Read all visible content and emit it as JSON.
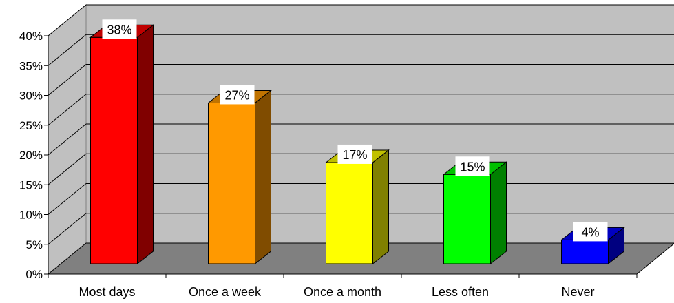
{
  "chart_data": {
    "type": "bar",
    "title": "",
    "xlabel": "",
    "ylabel": "",
    "categories": [
      "Most days",
      "Once a week",
      "Once a month",
      "Less often",
      "Never"
    ],
    "values": [
      38,
      27,
      17,
      15,
      4
    ],
    "value_labels": [
      "38%",
      "27%",
      "17%",
      "15%",
      "4%"
    ],
    "ylim": [
      0,
      40
    ],
    "yticks": [
      0,
      5,
      10,
      15,
      20,
      25,
      30,
      35,
      40
    ],
    "ytick_labels": [
      "0%",
      "5%",
      "10%",
      "15%",
      "20%",
      "25%",
      "30%",
      "35%",
      "40%"
    ],
    "grid": true,
    "legend": "none",
    "style": "3d-column",
    "colors": {
      "bars": [
        "#ff0000",
        "#ff9900",
        "#ffff00",
        "#00ff00",
        "#0000ff"
      ],
      "bar_sides": [
        "#800000",
        "#804c00",
        "#808000",
        "#008000",
        "#000080"
      ],
      "bar_tops": [
        "#c00000",
        "#c07300",
        "#c0c000",
        "#00c000",
        "#0000c0"
      ],
      "back_wall": "#c0c0c0",
      "side_wall": "#c0c0c0",
      "floor": "#808080",
      "gridline": "#000000",
      "label_box": "#ffffff"
    }
  }
}
